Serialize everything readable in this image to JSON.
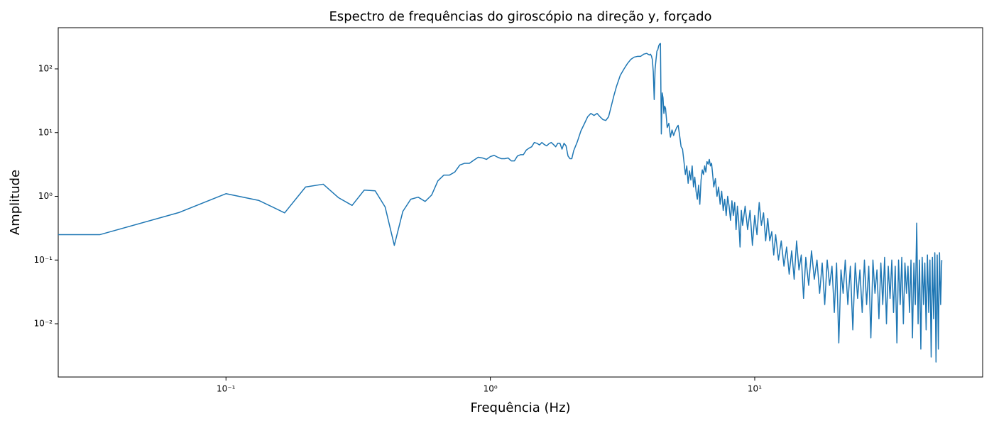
{
  "chart_data": {
    "type": "line",
    "title": "Espectro de frequências do giroscópio na direção y, forçado",
    "x_label": "Frequência (Hz)",
    "y_label": "Amplitude",
    "x_scale": "log",
    "y_scale": "log",
    "color": "#1f77b4",
    "xlim": [
      0.0232,
      72.8
    ],
    "ylim": [
      0.00146,
      443
    ],
    "xticks": [
      {
        "value": 0.1,
        "label": "10⁻¹"
      },
      {
        "value": 1,
        "label": "10⁰"
      },
      {
        "value": 10,
        "label": "10¹"
      }
    ],
    "yticks": [
      {
        "value": 0.01,
        "label": "10⁻²"
      },
      {
        "value": 0.1,
        "label": "10⁻¹"
      },
      {
        "value": 1,
        "label": "10⁰"
      },
      {
        "value": 10,
        "label": "10¹"
      },
      {
        "value": 100,
        "label": "10²"
      }
    ],
    "x": [
      0.0167,
      0.0333,
      0.0667,
      0.1,
      0.1333,
      0.1667,
      0.2,
      0.2333,
      0.2667,
      0.3,
      0.3333,
      0.3667,
      0.4,
      0.4333,
      0.4667,
      0.5,
      0.5333,
      0.5667,
      0.6,
      0.6333,
      0.6667,
      0.7,
      0.7333,
      0.7667,
      0.8,
      0.8333,
      0.8667,
      0.9,
      0.9333,
      0.9667,
      1.0,
      1.0333,
      1.0667,
      1.1,
      1.1333,
      1.1667,
      1.2,
      1.2333,
      1.2667,
      1.3,
      1.3333,
      1.3667,
      1.4,
      1.4333,
      1.4667,
      1.5,
      1.5333,
      1.5667,
      1.6,
      1.6333,
      1.6667,
      1.7,
      1.7333,
      1.7667,
      1.8,
      1.8333,
      1.8667,
      1.9,
      1.9333,
      1.9667,
      2.0,
      2.0333,
      2.0667,
      2.1333,
      2.2,
      2.2667,
      2.3333,
      2.4,
      2.4667,
      2.5333,
      2.6,
      2.6667,
      2.7333,
      2.8,
      2.8667,
      2.9333,
      3.0,
      3.1,
      3.2,
      3.3,
      3.4,
      3.5,
      3.6,
      3.7,
      3.8,
      3.9,
      4.0,
      4.0333,
      4.0667,
      4.1,
      4.1333,
      4.1667,
      4.2,
      4.2333,
      4.2667,
      4.3,
      4.3333,
      4.3667,
      4.4,
      4.4333,
      4.4667,
      4.5,
      4.5333,
      4.5667,
      4.6,
      4.6667,
      4.7333,
      4.8,
      4.8667,
      4.9333,
      5.0,
      5.0667,
      5.1333,
      5.2,
      5.2667,
      5.3333,
      5.4,
      5.4667,
      5.5333,
      5.6,
      5.6667,
      5.7333,
      5.8,
      5.8667,
      5.9333,
      6.0,
      6.0667,
      6.1333,
      6.2,
      6.2667,
      6.3333,
      6.4,
      6.4667,
      6.5333,
      6.6,
      6.6667,
      6.7333,
      6.8,
      6.8667,
      6.9333,
      7.0,
      7.1,
      7.2,
      7.3,
      7.4,
      7.5,
      7.6,
      7.7,
      7.8,
      7.9,
      8.0,
      8.1,
      8.2,
      8.3,
      8.4,
      8.5,
      8.6,
      8.7,
      8.8,
      8.9,
      9.0,
      9.2,
      9.4,
      9.6,
      9.8,
      10.0,
      10.2,
      10.4,
      10.6,
      10.8,
      11.0,
      11.2,
      11.4,
      11.6,
      11.8,
      12.0,
      12.3,
      12.6,
      12.9,
      13.2,
      13.5,
      13.8,
      14.1,
      14.4,
      14.7,
      15.0,
      15.3,
      15.6,
      16.0,
      16.4,
      16.8,
      17.2,
      17.6,
      18.0,
      18.4,
      18.8,
      19.2,
      19.6,
      20.0,
      20.4,
      20.8,
      21.2,
      21.6,
      22.0,
      22.5,
      23.0,
      23.5,
      24.0,
      24.5,
      25.0,
      25.5,
      26.0,
      26.5,
      27.0,
      27.5,
      28.0,
      28.5,
      29.0,
      29.5,
      30.0,
      30.5,
      31.0,
      31.5,
      32.0,
      32.5,
      33.0,
      33.5,
      34.0,
      34.5,
      35.0,
      35.5,
      36.0,
      36.5,
      37.0,
      37.5,
      38.0,
      38.5,
      39.0,
      39.5,
      40.0,
      40.5,
      41.0,
      41.5,
      42.0,
      42.5,
      43.0,
      43.5,
      44.0,
      44.5,
      45.0,
      45.5,
      46.0,
      46.5,
      47.0,
      47.5,
      48.0,
      48.5,
      49.0,
      49.5,
      50.0,
      50.5,
      51.0
    ],
    "values": [
      0.25,
      0.25,
      0.56,
      1.1,
      0.86,
      0.55,
      1.4,
      1.55,
      0.95,
      0.72,
      1.25,
      1.22,
      0.68,
      0.17,
      0.58,
      0.9,
      0.97,
      0.83,
      1.05,
      1.75,
      2.15,
      2.15,
      2.4,
      3.1,
      3.3,
      3.3,
      3.7,
      4.1,
      4.0,
      3.8,
      4.2,
      4.4,
      4.1,
      3.9,
      3.9,
      4.0,
      3.6,
      3.6,
      4.3,
      4.5,
      4.5,
      5.3,
      5.7,
      6.0,
      7.0,
      6.8,
      6.4,
      7.0,
      6.5,
      6.2,
      6.7,
      7.0,
      6.5,
      6.0,
      6.8,
      6.8,
      5.5,
      6.8,
      6.2,
      4.3,
      3.9,
      3.9,
      5.2,
      7.2,
      10.6,
      13.7,
      17.7,
      20,
      18.6,
      20,
      17.7,
      16,
      15.5,
      17.7,
      26,
      38,
      53,
      79,
      99,
      121,
      141,
      153,
      157,
      157,
      170,
      175,
      165,
      170,
      160,
      140,
      90,
      33,
      100,
      140,
      190,
      200,
      230,
      245,
      250,
      9.5,
      42,
      35,
      20,
      26,
      24,
      12,
      14,
      8.5,
      11,
      9,
      10.5,
      12,
      13,
      9,
      6,
      5.5,
      3.5,
      2.2,
      3.0,
      1.6,
      2.5,
      1.8,
      3.0,
      1.4,
      2.0,
      1.2,
      0.9,
      1.5,
      0.75,
      1.8,
      2.6,
      2.2,
      3.0,
      2.4,
      3.5,
      3.2,
      3.8,
      3.0,
      3.3,
      2.2,
      1.4,
      1.9,
      1.0,
      1.4,
      0.75,
      1.2,
      0.6,
      0.9,
      0.5,
      1.0,
      0.7,
      0.42,
      0.85,
      0.5,
      0.8,
      0.3,
      0.7,
      0.4,
      0.16,
      0.6,
      0.35,
      0.7,
      0.3,
      0.6,
      0.17,
      0.5,
      0.25,
      0.8,
      0.35,
      0.55,
      0.2,
      0.45,
      0.2,
      0.28,
      0.12,
      0.25,
      0.1,
      0.2,
      0.08,
      0.16,
      0.06,
      0.14,
      0.05,
      0.2,
      0.07,
      0.12,
      0.025,
      0.11,
      0.04,
      0.14,
      0.05,
      0.1,
      0.03,
      0.09,
      0.02,
      0.1,
      0.04,
      0.08,
      0.015,
      0.09,
      0.005,
      0.07,
      0.03,
      0.1,
      0.02,
      0.08,
      0.008,
      0.09,
      0.025,
      0.07,
      0.015,
      0.1,
      0.02,
      0.08,
      0.006,
      0.1,
      0.03,
      0.07,
      0.012,
      0.09,
      0.02,
      0.11,
      0.01,
      0.08,
      0.025,
      0.1,
      0.015,
      0.08,
      0.005,
      0.1,
      0.02,
      0.11,
      0.01,
      0.09,
      0.03,
      0.08,
      0.015,
      0.1,
      0.006,
      0.09,
      0.02,
      0.38,
      0.01,
      0.1,
      0.004,
      0.11,
      0.02,
      0.09,
      0.008,
      0.12,
      0.015,
      0.1,
      0.003,
      0.11,
      0.012,
      0.13,
      0.0025,
      0.12,
      0.004,
      0.13,
      0.02,
      0.1
    ]
  }
}
